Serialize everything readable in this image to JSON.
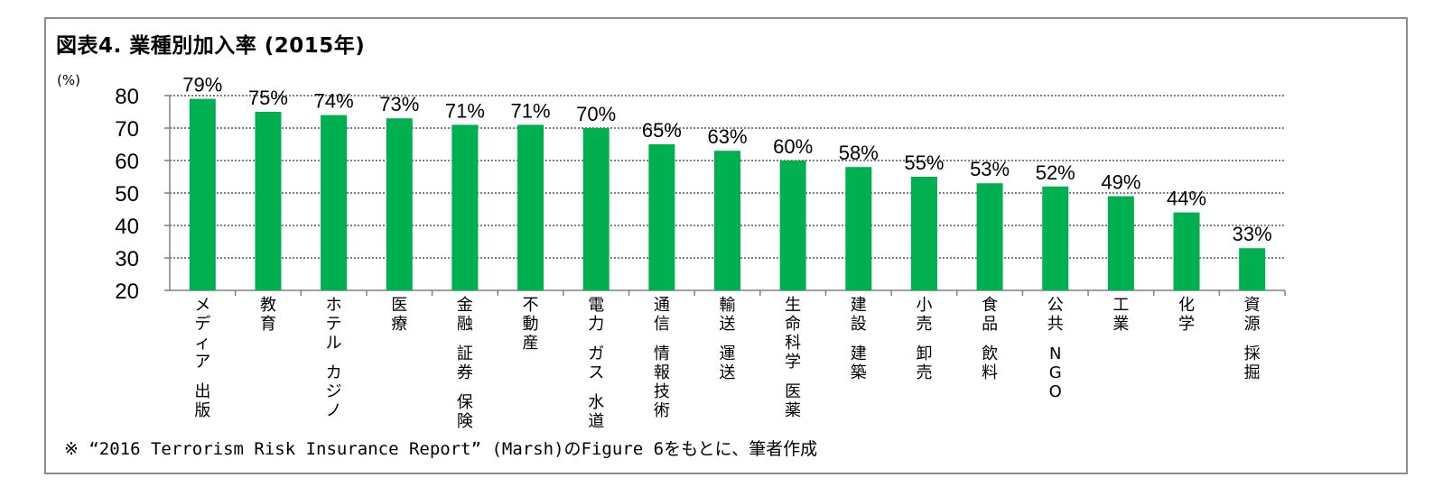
{
  "title": "図表4. 業種別加入率 (2015年)",
  "note": "※ “2016 Terrorism Risk Insurance Report” (Marsh)のFigure 6をもとに、筆者作成",
  "colors": {
    "bar": "#00b050",
    "grid": "#808080",
    "axis": "#808080",
    "frame": "#8c8c8c"
  },
  "chart_data": {
    "type": "bar",
    "ylabel": "(%)",
    "ylim": [
      20,
      80
    ],
    "yticks": [
      20,
      30,
      40,
      50,
      60,
      70,
      80
    ],
    "grid": true,
    "categories": [
      [
        "メディア",
        "出版"
      ],
      [
        "教育"
      ],
      [
        "ホテル",
        "カジノ"
      ],
      [
        "医療"
      ],
      [
        "金融",
        "証券",
        "保険"
      ],
      [
        "不動産"
      ],
      [
        "電力",
        "ガス",
        "水道"
      ],
      [
        "通信",
        "情報技術"
      ],
      [
        "輸送",
        "運送"
      ],
      [
        "生命科学",
        "医薬"
      ],
      [
        "建設",
        "建築"
      ],
      [
        "小売",
        "卸売"
      ],
      [
        "食品",
        "飲料"
      ],
      [
        "公共",
        "NGO"
      ],
      [
        "工業"
      ],
      [
        "化学"
      ],
      [
        "資源",
        "採掘"
      ]
    ],
    "values": [
      79,
      75,
      74,
      73,
      71,
      71,
      70,
      65,
      63,
      60,
      58,
      55,
      53,
      52,
      49,
      44,
      33
    ],
    "value_labels": [
      "79%",
      "75%",
      "74%",
      "73%",
      "71%",
      "71%",
      "70%",
      "65%",
      "63%",
      "60%",
      "58%",
      "55%",
      "53%",
      "52%",
      "49%",
      "44%",
      "33%"
    ]
  }
}
